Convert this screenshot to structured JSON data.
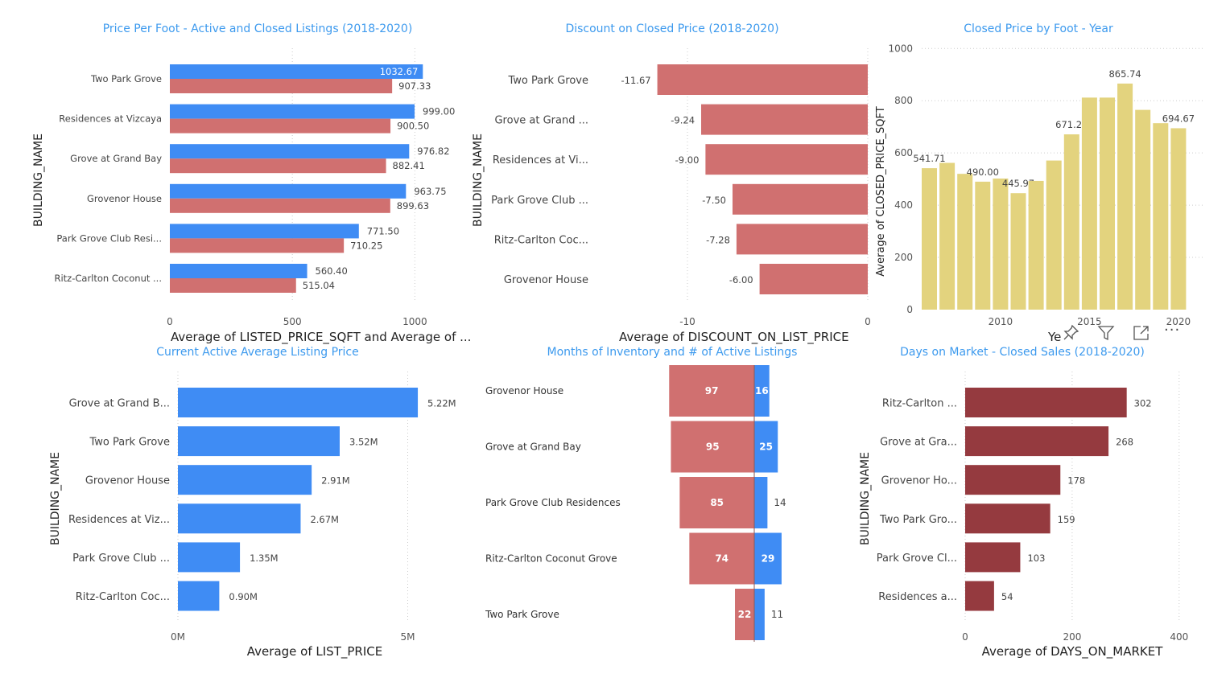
{
  "colors": {
    "title": "#3d9aee",
    "blue": "#3f8cf4",
    "red": "#d07070",
    "gold": "#e3d37e",
    "maroon": "#953a3f",
    "tick": "#555555",
    "grid": "#cccccc"
  },
  "toolbar": {
    "icons": [
      "pin-icon",
      "filter-icon",
      "focus-mode-icon",
      "more-options-icon"
    ],
    "more_glyph": "···"
  },
  "chart_data": [
    {
      "id": "price_per_foot",
      "type": "bar",
      "title": "Price Per Foot - Active and Closed Listings (2018-2020)",
      "xlabel": "Average of LISTED_PRICE_SQFT and Average of ...",
      "ylabel": "BUILDING_NAME",
      "categories": [
        "Two Park Grove",
        "Residences at Vizcaya",
        "Grove at Grand Bay",
        "Grovenor House",
        "Park Grove Club Resi...",
        "Ritz-Carlton Coconut ..."
      ],
      "series": [
        {
          "values": [
            1032.67,
            999.0,
            976.82,
            963.75,
            771.5,
            560.4
          ],
          "labels": [
            "1032.67",
            "999.00",
            "976.82",
            "963.75",
            "771.50",
            "560.40"
          ]
        },
        {
          "values": [
            907.33,
            900.5,
            882.41,
            899.63,
            710.25,
            515.04
          ],
          "labels": [
            "907.33",
            "900.50",
            "882.41",
            "899.63",
            "710.25",
            "515.04"
          ]
        }
      ],
      "xlim": [
        0,
        1150
      ],
      "xticks": [
        0,
        500,
        1000
      ],
      "xtick_labels": [
        "0",
        "500",
        "1000"
      ],
      "grid": true
    },
    {
      "id": "discount",
      "type": "bar",
      "title": "Discount on Closed Price (2018-2020)",
      "xlabel": "Average of DISCOUNT_ON_LIST_PRICE",
      "ylabel": "BUILDING_NAME",
      "categories": [
        "Two Park Grove",
        "Grove at Grand ...",
        "Residences at Vi...",
        "Park Grove Club ...",
        "Ritz-Carlton Coc...",
        "Grovenor House"
      ],
      "values": [
        -11.67,
        -9.24,
        -9.0,
        -7.5,
        -7.28,
        -6.0
      ],
      "labels": [
        "-11.67",
        "-9.24",
        "-9.00",
        "-7.50",
        "-7.28",
        "-6.00"
      ],
      "xlim": [
        -12.5,
        0
      ],
      "xticks": [
        -10,
        0
      ],
      "xtick_labels": [
        "-10",
        "0"
      ],
      "grid": true
    },
    {
      "id": "closed_price_year",
      "type": "bar",
      "title": "Closed Price by Foot - Year",
      "xlabel": "Ye",
      "ylabel": "Average of CLOSED_PRICE_SQFT",
      "x": [
        2006,
        2007,
        2008,
        2009,
        2010,
        2011,
        2012,
        2013,
        2014,
        2015,
        2016,
        2017,
        2018,
        2019,
        2020
      ],
      "values": [
        541.71,
        562,
        520,
        490.0,
        502,
        445.97,
        493,
        571,
        671.21,
        812,
        812,
        865.74,
        765,
        714,
        694.67
      ],
      "labels": [
        "541.71",
        "",
        "",
        "490.00",
        "",
        "445.97",
        "",
        "",
        "671.21",
        "",
        "",
        "865.74",
        "",
        "",
        "694.67"
      ],
      "ylim": [
        0,
        1000
      ],
      "yticks": [
        0,
        200,
        400,
        600,
        800,
        1000
      ],
      "ytick_labels": [
        "0",
        "200",
        "400",
        "600",
        "800",
        "1000"
      ],
      "xticks": [
        2010,
        2015,
        2020
      ],
      "xtick_labels": [
        "2010",
        "2015",
        "2020"
      ],
      "grid": true
    },
    {
      "id": "active_list_price",
      "type": "bar",
      "title": "Current Active Average Listing Price",
      "xlabel": "Average of LIST_PRICE",
      "ylabel": "BUILDING_NAME",
      "categories": [
        "Grove at Grand B...",
        "Two Park Grove",
        "Grovenor House",
        "Residences at Viz...",
        "Park Grove Club ...",
        "Ritz-Carlton Coc..."
      ],
      "values": [
        5.22,
        3.52,
        2.91,
        2.67,
        1.35,
        0.9
      ],
      "labels": [
        "5.22M",
        "3.52M",
        "2.91M",
        "2.67M",
        "1.35M",
        "0.90M"
      ],
      "xlim": [
        0,
        6
      ],
      "xticks": [
        0,
        5
      ],
      "xtick_labels": [
        "0M",
        "5M"
      ],
      "grid": true
    },
    {
      "id": "inventory",
      "type": "bar",
      "title": "Months of Inventory and # of Active Listings",
      "categories": [
        "Grovenor House",
        "Grove at Grand Bay",
        "Park Grove Club Residences",
        "Ritz-Carlton Coconut Grove",
        "Two Park Grove"
      ],
      "series": [
        {
          "values": [
            97,
            95,
            85,
            74,
            22
          ],
          "labels": [
            "97",
            "95",
            "85",
            "74",
            "22"
          ]
        },
        {
          "values": [
            16,
            25,
            14,
            29,
            11
          ],
          "labels": [
            "16",
            "25",
            "14",
            "29",
            "11"
          ]
        }
      ]
    },
    {
      "id": "days_on_market",
      "type": "bar",
      "title": "Days on Market - Closed Sales (2018-2020)",
      "xlabel": "Average of DAYS_ON_MARKET",
      "ylabel": "BUILDING_NAME",
      "categories": [
        "Ritz-Carlton ...",
        "Grove at Gra...",
        "Grovenor Ho...",
        "Two Park Gro...",
        "Park Grove Cl...",
        "Residences a..."
      ],
      "values": [
        302,
        268,
        178,
        159,
        103,
        54
      ],
      "labels": [
        "302",
        "268",
        "178",
        "159",
        "103",
        "54"
      ],
      "xlim": [
        0,
        450
      ],
      "xticks": [
        0,
        200,
        400
      ],
      "xtick_labels": [
        "0",
        "200",
        "400"
      ],
      "grid": true
    }
  ]
}
